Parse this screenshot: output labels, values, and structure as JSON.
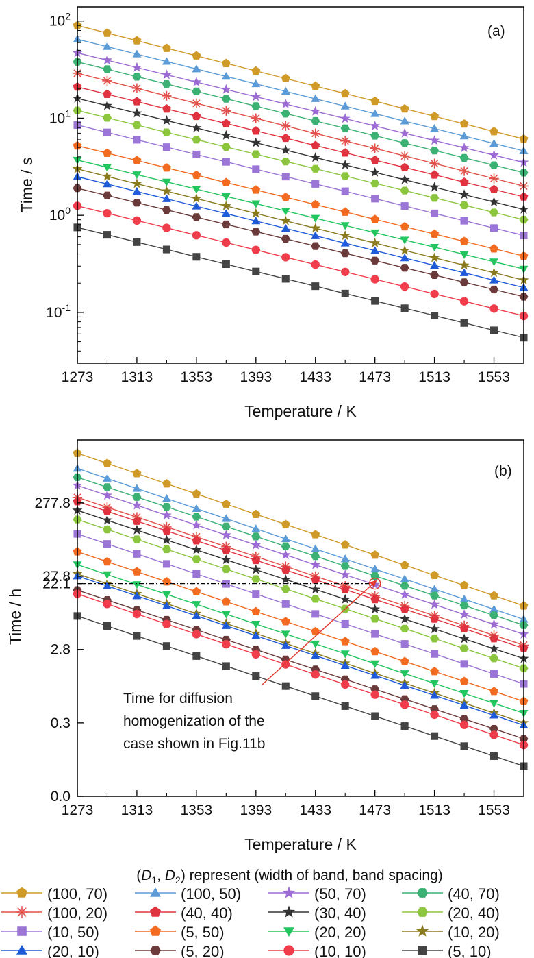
{
  "legend_title": {
    "pre": "(",
    "d1": "D",
    "s1": "1",
    "comma": ", ",
    "d2": "D",
    "s2": "2",
    "post": ") represent (width of band, band spacing)"
  },
  "series_style": [
    {
      "name": "(100, 70)",
      "color": "#D09A28",
      "marker": "pentagon"
    },
    {
      "name": "(100, 50)",
      "color": "#5A9BD8",
      "marker": "triangle-up"
    },
    {
      "name": "(50, 70)",
      "color": "#9C6BD3",
      "marker": "star"
    },
    {
      "name": "(40, 70)",
      "color": "#3BB273",
      "marker": "hexagon"
    },
    {
      "name": "(100, 20)",
      "color": "#E2504A",
      "marker": "asterisk"
    },
    {
      "name": "(40, 40)",
      "color": "#E03340",
      "marker": "pentagon"
    },
    {
      "name": "(30, 40)",
      "color": "#333333",
      "marker": "star"
    },
    {
      "name": "(20, 40)",
      "color": "#8CC63F",
      "marker": "hexagon"
    },
    {
      "name": "(10, 50)",
      "color": "#9B76D6",
      "marker": "square"
    },
    {
      "name": "(5, 50)",
      "color": "#F26B21",
      "marker": "pentagon"
    },
    {
      "name": "(20, 20)",
      "color": "#22C55E",
      "marker": "triangle-down"
    },
    {
      "name": "(10, 20)",
      "color": "#8A7A1E",
      "marker": "star"
    },
    {
      "name": "(20, 10)",
      "color": "#1F5BD8",
      "marker": "triangle-up"
    },
    {
      "name": "(5, 20)",
      "color": "#6B3A3A",
      "marker": "hexagon"
    },
    {
      "name": "(10, 10)",
      "color": "#EF3D4B",
      "marker": "circle"
    },
    {
      "name": "(5, 10)",
      "color": "#444444",
      "marker": "square"
    }
  ],
  "chart_data": [
    {
      "panel": "(a)",
      "type": "line",
      "yscale": "log",
      "ylabel": "Time / s",
      "xlabel": "Temperature / K",
      "xlim": [
        1273,
        1573
      ],
      "ylim": [
        0.03,
        140
      ],
      "xticks": [
        1273,
        1313,
        1353,
        1393,
        1433,
        1473,
        1513,
        1553
      ],
      "yticks": [
        {
          "value": 0.1,
          "base": "10",
          "exp": "-1"
        },
        {
          "value": 1,
          "base": "10",
          "exp": "0"
        },
        {
          "value": 10,
          "base": "10",
          "exp": "1"
        },
        {
          "value": 100,
          "base": "10",
          "exp": "2"
        }
      ],
      "x": [
        1273,
        1293,
        1313,
        1333,
        1353,
        1373,
        1393,
        1413,
        1433,
        1453,
        1473,
        1493,
        1513,
        1533,
        1553,
        1573
      ],
      "series": [
        {
          "name": "(100, 70)",
          "start": 90,
          "end": 6.1
        },
        {
          "name": "(100, 50)",
          "start": 65,
          "end": 4.6
        },
        {
          "name": "(50, 70)",
          "start": 47,
          "end": 3.5
        },
        {
          "name": "(40, 70)",
          "start": 38,
          "end": 2.75
        },
        {
          "name": "(100, 20)",
          "start": 29,
          "end": 2.0
        },
        {
          "name": "(40, 40)",
          "start": 21,
          "end": 1.55
        },
        {
          "name": "(30, 40)",
          "start": 16,
          "end": 1.15
        },
        {
          "name": "(20, 40)",
          "start": 12,
          "end": 0.9
        },
        {
          "name": "(10, 50)",
          "start": 8.5,
          "end": 0.62
        },
        {
          "name": "(5, 50)",
          "start": 5.2,
          "end": 0.38
        },
        {
          "name": "(20, 20)",
          "start": 3.7,
          "end": 0.28
        },
        {
          "name": "(10, 20)",
          "start": 3.0,
          "end": 0.215
        },
        {
          "name": "(20, 10)",
          "start": 2.5,
          "end": 0.18
        },
        {
          "name": "(5, 20)",
          "start": 1.9,
          "end": 0.145
        },
        {
          "name": "(10, 10)",
          "start": 1.25,
          "end": 0.092
        },
        {
          "name": "(5, 10)",
          "start": 0.75,
          "end": 0.055
        }
      ]
    },
    {
      "panel": "(b)",
      "type": "line",
      "yscale": "log",
      "ylabel": "Time / h",
      "xlabel": "Temperature / K",
      "xlim": [
        1273,
        1573
      ],
      "ylim": [
        0.028,
        2000
      ],
      "xticks": [
        1273,
        1313,
        1353,
        1393,
        1433,
        1473,
        1513,
        1553
      ],
      "yticks": [
        {
          "value": 0.028,
          "label": "0.0"
        },
        {
          "value": 0.28,
          "label": "0.3"
        },
        {
          "value": 2.8,
          "label": "2.8"
        },
        {
          "value": 22.1,
          "label": "22.1"
        },
        {
          "value": 27.8,
          "label": "27.8"
        },
        {
          "value": 277.8,
          "label": "277.8"
        }
      ],
      "x": [
        1273,
        1293,
        1313,
        1333,
        1353,
        1373,
        1393,
        1413,
        1433,
        1453,
        1473,
        1493,
        1513,
        1533,
        1553,
        1573
      ],
      "series": [
        {
          "name": "(100, 70)",
          "start": 1320,
          "end": 11
        },
        {
          "name": "(100, 50)",
          "start": 820,
          "end": 7.2
        },
        {
          "name": "(50, 70)",
          "start": 480,
          "end": 4.5
        },
        {
          "name": "(40, 70)",
          "start": 620,
          "end": 6.0
        },
        {
          "name": "(100, 20)",
          "start": 330,
          "end": 3.2
        },
        {
          "name": "(40, 40)",
          "start": 290,
          "end": 2.9
        },
        {
          "name": "(30, 40)",
          "start": 220,
          "end": 2.1
        },
        {
          "name": "(20, 40)",
          "start": 165,
          "end": 1.55
        },
        {
          "name": "(10, 50)",
          "start": 105,
          "end": 0.95
        },
        {
          "name": "(5, 50)",
          "start": 60,
          "end": 0.55
        },
        {
          "name": "(20, 20)",
          "start": 40,
          "end": 0.38
        },
        {
          "name": "(10, 20)",
          "start": 30,
          "end": 0.28
        },
        {
          "name": "(20, 10)",
          "start": 28,
          "end": 0.26
        },
        {
          "name": "(5, 20)",
          "start": 18,
          "end": 0.17
        },
        {
          "name": "(10, 10)",
          "start": 16,
          "end": 0.14
        },
        {
          "name": "(5, 10)",
          "start": 8,
          "end": 0.072
        }
      ],
      "reference_line": {
        "y": 22.1,
        "x_from": 1273,
        "x_to": 1473
      },
      "highlight_point": {
        "series": "(50, 70)",
        "x": 1473,
        "y": 22.1
      },
      "annotation": {
        "lines": [
          "Time for diffusion",
          "homogenization of the",
          "case shown in Fig.11b"
        ]
      }
    }
  ]
}
